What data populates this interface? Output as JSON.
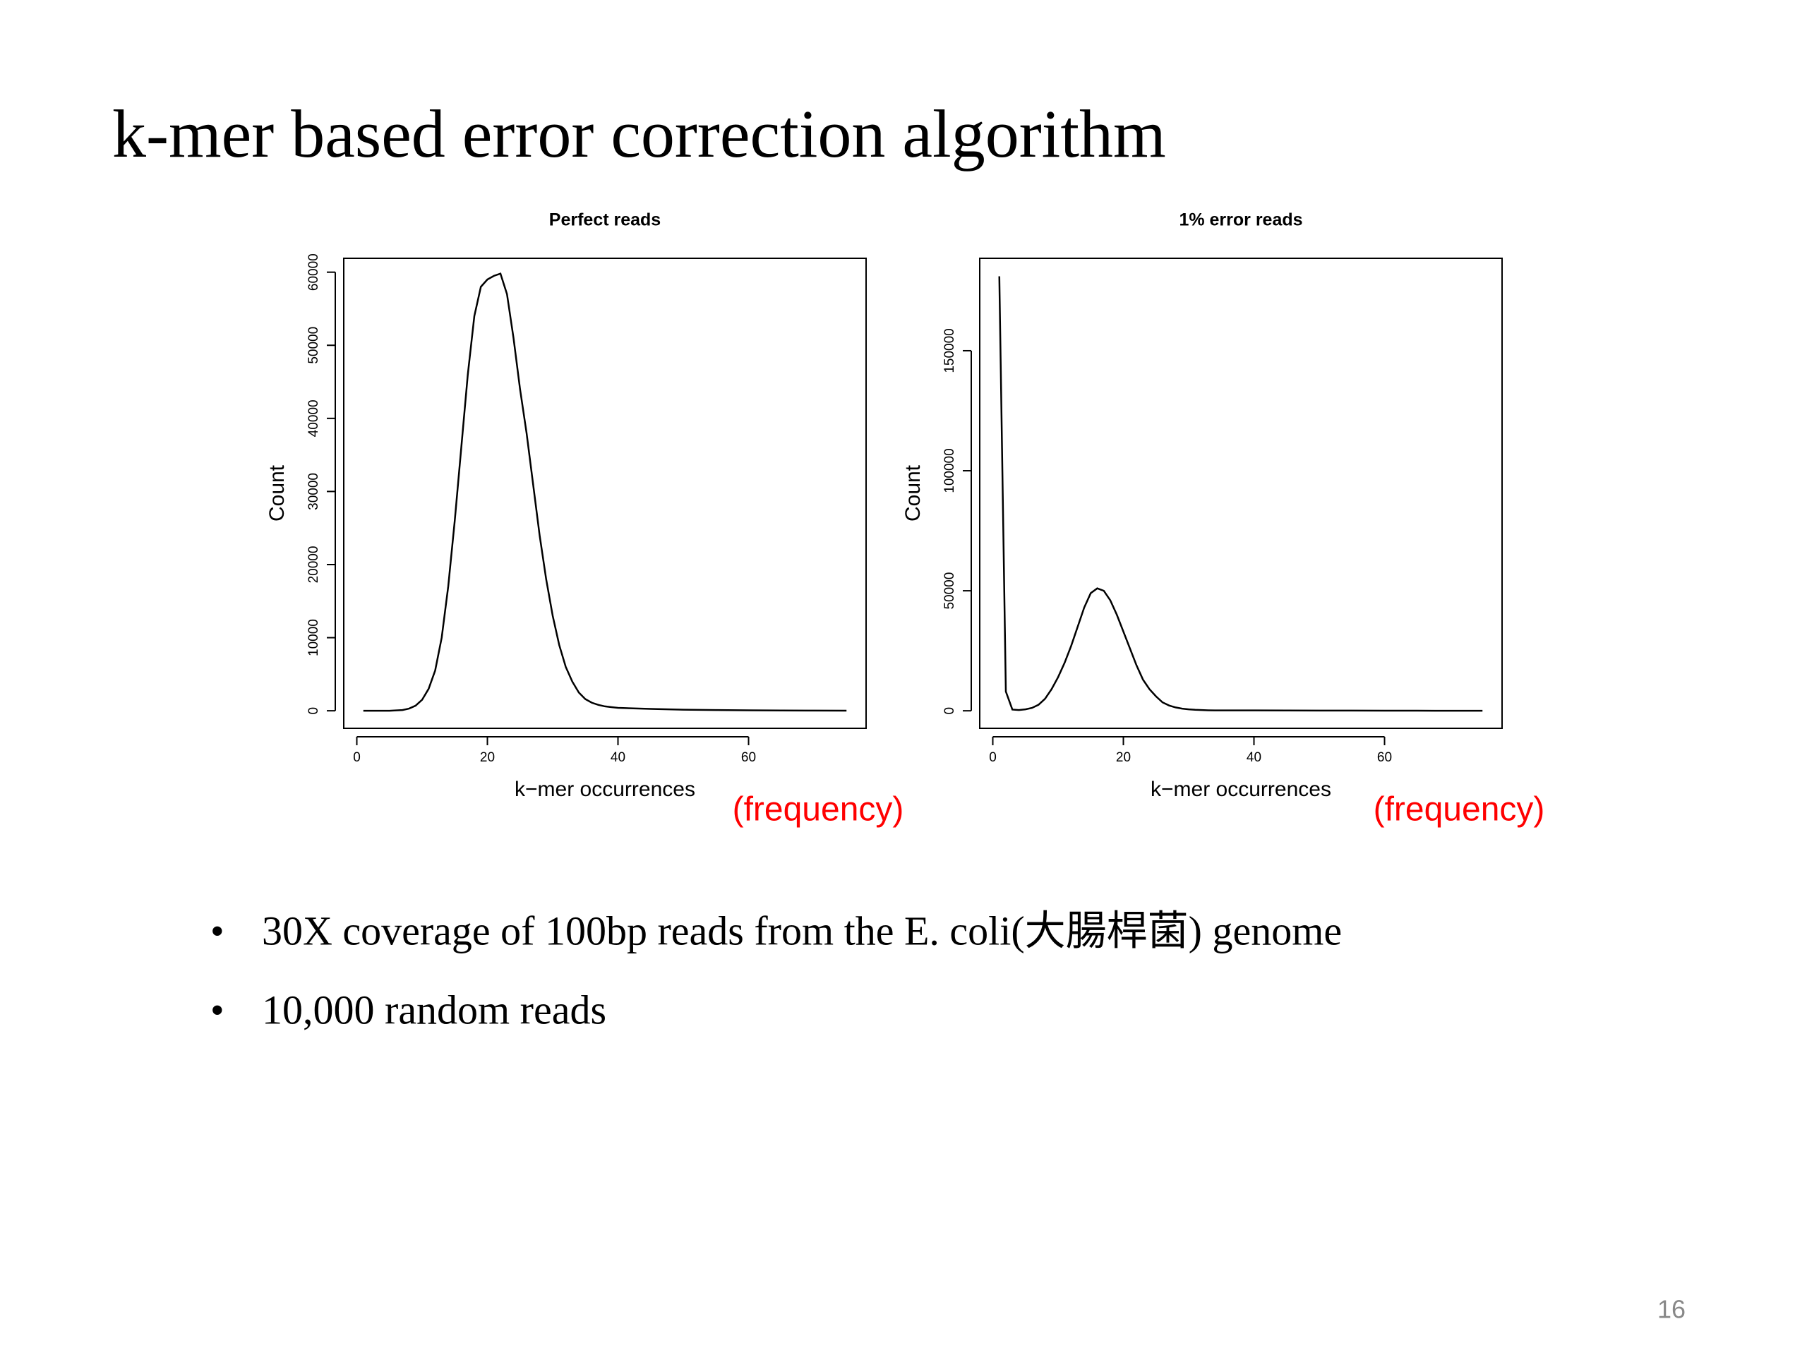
{
  "slide": {
    "title": "k-mer based error correction algorithm",
    "bullets": [
      "30X coverage of 100bp reads from the E. coli(大腸桿菌) genome",
      "10,000 random reads"
    ],
    "page_number": "16"
  },
  "chart_data": [
    {
      "type": "line",
      "title": "Perfect reads",
      "x_label": "k−mer occurrences",
      "y_label": "Count",
      "annotation": "(frequency)",
      "annotation_color": "#ff0000",
      "color": "#000000",
      "x": [
        1,
        2,
        3,
        4,
        5,
        6,
        7,
        8,
        9,
        10,
        11,
        12,
        13,
        14,
        15,
        16,
        17,
        18,
        19,
        20,
        21,
        22,
        23,
        24,
        25,
        26,
        27,
        28,
        29,
        30,
        31,
        32,
        33,
        34,
        35,
        36,
        37,
        38,
        39,
        40,
        45,
        50,
        55,
        60,
        65,
        70,
        75
      ],
      "values": [
        0,
        0,
        0,
        0,
        0,
        50,
        100,
        300,
        700,
        1500,
        3000,
        5500,
        10000,
        17000,
        26000,
        36000,
        46000,
        54000,
        58000,
        59000,
        59500,
        59800,
        57000,
        51000,
        44000,
        38000,
        31000,
        24000,
        18000,
        13000,
        9000,
        6000,
        4000,
        2500,
        1600,
        1100,
        800,
        600,
        500,
        400,
        250,
        150,
        100,
        60,
        40,
        20,
        10
      ],
      "xlim": [
        -2,
        78
      ],
      "ylim": [
        -2400,
        61900
      ],
      "xticks": [
        0,
        20,
        40,
        60
      ],
      "yticks": [
        0,
        10000,
        20000,
        30000,
        40000,
        50000,
        60000
      ]
    },
    {
      "type": "line",
      "title": "1% error reads",
      "x_label": "k−mer occurrences",
      "y_label": "Count",
      "annotation": "(frequency)",
      "annotation_color": "#ff0000",
      "color": "#000000",
      "x": [
        1,
        2,
        3,
        4,
        5,
        6,
        7,
        8,
        9,
        10,
        11,
        12,
        13,
        14,
        15,
        16,
        17,
        18,
        19,
        20,
        21,
        22,
        23,
        24,
        25,
        26,
        27,
        28,
        29,
        30,
        31,
        32,
        33,
        34,
        35,
        36,
        37,
        38,
        39,
        40,
        45,
        50,
        55,
        60,
        65,
        70,
        75
      ],
      "values": [
        181000,
        8000,
        500,
        300,
        600,
        1200,
        2500,
        5000,
        9000,
        14000,
        20000,
        27000,
        35000,
        43000,
        49000,
        51000,
        50000,
        46000,
        40000,
        33000,
        26000,
        19000,
        13000,
        9000,
        6000,
        3500,
        2200,
        1400,
        900,
        600,
        400,
        300,
        200,
        150,
        150,
        150,
        150,
        150,
        150,
        150,
        120,
        100,
        80,
        60,
        40,
        20,
        10
      ],
      "xlim": [
        -2,
        78
      ],
      "ylim": [
        -7300,
        188500
      ],
      "xticks": [
        0,
        20,
        40,
        60
      ],
      "yticks": [
        0,
        50000,
        100000,
        150000
      ]
    }
  ]
}
